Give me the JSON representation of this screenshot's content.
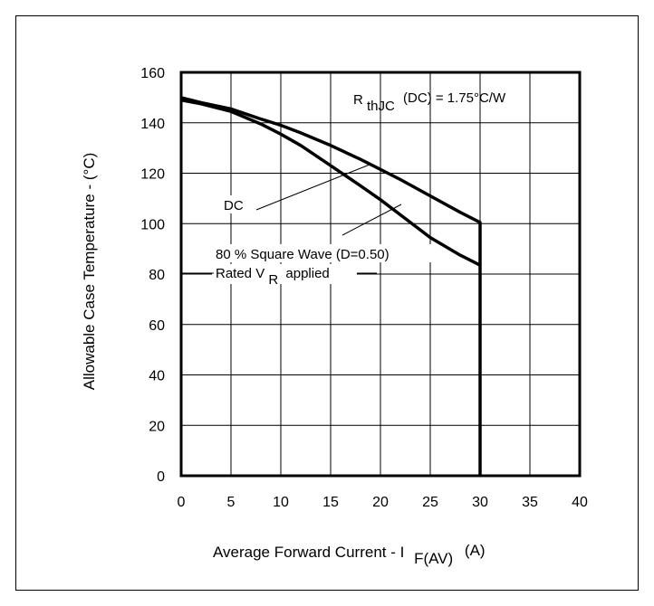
{
  "chart_data": {
    "type": "line",
    "title": "",
    "xlabel": {
      "main": "Average Forward Current - I",
      "subscript": "F(AV)",
      "unit": "(A)"
    },
    "ylabel": "Allowable Case Temperature - (°C)",
    "xlim": [
      0,
      40
    ],
    "ylim": [
      0,
      160
    ],
    "x_ticks": [
      "0",
      "5",
      "10",
      "15",
      "20",
      "25",
      "30",
      "35",
      "40"
    ],
    "y_ticks": [
      "0",
      "20",
      "40",
      "60",
      "80",
      "100",
      "120",
      "140",
      "160"
    ],
    "grid": true,
    "series": [
      {
        "name": "DC",
        "x": [
          0,
          2,
          5,
          8,
          10,
          12,
          15,
          18,
          20,
          22,
          25,
          28,
          30,
          30
        ],
        "y": [
          150,
          148,
          145.5,
          141.5,
          139,
          136,
          131,
          125.5,
          121.5,
          117.5,
          111,
          104.5,
          100.5,
          0
        ]
      },
      {
        "name": "80 % Square Wave (D=0.50)",
        "x": [
          0,
          2,
          5,
          8,
          10,
          12,
          15,
          18,
          20,
          22,
          25,
          28,
          30
        ],
        "y": [
          149,
          147.5,
          144.5,
          139.5,
          135.5,
          131,
          123,
          115,
          109.5,
          103.5,
          94.5,
          87.5,
          83.5
        ]
      }
    ],
    "annotations": {
      "rth": {
        "prefix": "R",
        "sub": "thJC",
        "text": "(DC) = 1.75°C/W"
      },
      "dc": "DC",
      "sq": "80 % Square Wave (D=0.50)",
      "rated": {
        "prefix": "Rated V",
        "sub": "R",
        "suffix": "applied"
      }
    }
  }
}
